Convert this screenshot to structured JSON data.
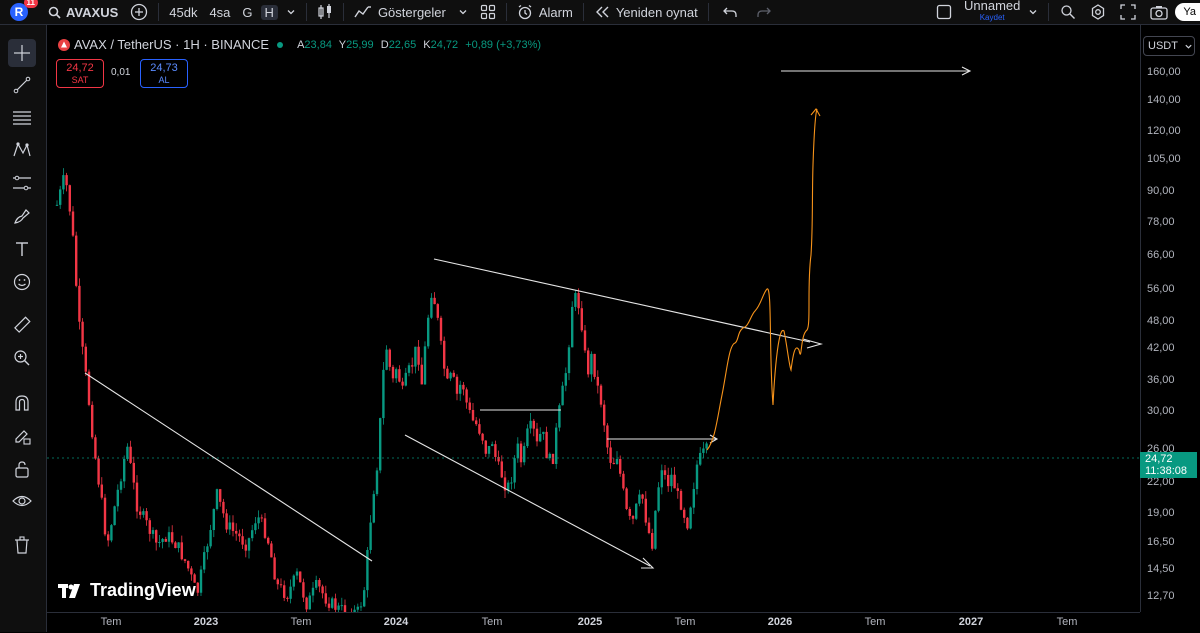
{
  "topbar": {
    "avatar_letter": "R",
    "notification_count": "11",
    "symbol": "AVAXUS",
    "intervals": [
      "45dk",
      "4sa",
      "G",
      "H"
    ],
    "active_interval": "H",
    "indicators_label": "Göstergeler",
    "alert_label": "Alarm",
    "replay_label": "Yeniden oynat",
    "layout_name": "Unnamed",
    "layout_status": "Kaydet",
    "right_cut_text": "Ya"
  },
  "legend": {
    "title": "AVAX / TetherUS · 1H · BINANCE",
    "ohlc": [
      {
        "k": "A",
        "v": "23,84"
      },
      {
        "k": "Y",
        "v": "25,99"
      },
      {
        "k": "D",
        "v": "22,65"
      },
      {
        "k": "K",
        "v": "24,72"
      },
      {
        "k": "",
        "v": "+0,89 (+3,73%)"
      }
    ]
  },
  "trade": {
    "sell_price": "24,72",
    "sell_label": "SAT",
    "spread": "0,01",
    "buy_price": "24,73",
    "buy_label": "AL"
  },
  "currency": "USDT",
  "current_price": {
    "price": "24,72",
    "countdown": "11:38:08"
  },
  "price_axis": [
    "160,00",
    "140,00",
    "120,00",
    "105,00",
    "90,00",
    "78,00",
    "66,00",
    "56,00",
    "48,00",
    "42,00",
    "36,00",
    "30,00",
    "26,00",
    "22,00",
    "19,00",
    "16,50",
    "14,50",
    "12,70"
  ],
  "time_axis": [
    {
      "label": "Tem",
      "year": false
    },
    {
      "label": "2023",
      "year": true
    },
    {
      "label": "Tem",
      "year": false
    },
    {
      "label": "2024",
      "year": true
    },
    {
      "label": "Tem",
      "year": false
    },
    {
      "label": "2025",
      "year": true
    },
    {
      "label": "Tem",
      "year": false
    },
    {
      "label": "2026",
      "year": true
    },
    {
      "label": "Tem",
      "year": false
    },
    {
      "label": "2027",
      "year": true
    },
    {
      "label": "Tem",
      "year": false
    }
  ],
  "watermark": "TradingView",
  "colors": {
    "up": "#089981",
    "down": "#f23645",
    "projection": "#f7931a",
    "drawing": "#e0e0e0"
  },
  "left_tools": [
    "crosshair-icon",
    "trendline-icon",
    "fib-icon",
    "pattern-icon",
    "forecast-icon",
    "brush-icon",
    "text-icon",
    "emoji-icon",
    "ruler-icon",
    "zoom-icon",
    "magnet-icon",
    "lock-draw-icon",
    "lock-icon",
    "eye-icon",
    "trash-icon"
  ]
}
